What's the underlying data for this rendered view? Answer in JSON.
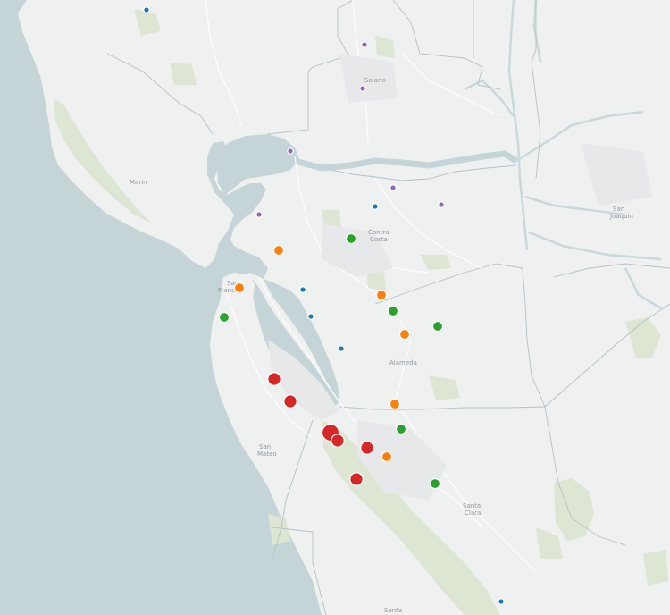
{
  "map": {
    "labels": [
      {
        "text": "Solano"
      },
      {
        "text": "Marin"
      },
      {
        "text": "Contra"
      },
      {
        "text": "Costa"
      },
      {
        "text": "San"
      },
      {
        "text": "Joaquin"
      },
      {
        "text": "San"
      },
      {
        "text": "Franc"
      },
      {
        "text": "Alameda"
      },
      {
        "text": "San"
      },
      {
        "text": "Mateo"
      },
      {
        "text": "Santa"
      },
      {
        "text": "Clara"
      },
      {
        "text": "Santa"
      }
    ],
    "colors": {
      "blue": "#1f77b4",
      "purple": "#9467bd",
      "green": "#2ca02c",
      "orange": "#ff7f0e",
      "red": "#d62728",
      "water": "#c5d5d7",
      "land": "#eff0f0",
      "park": "#dde6d3"
    },
    "points": [
      {
        "color": "blue",
        "size": "small"
      },
      {
        "color": "purple",
        "size": "small"
      },
      {
        "color": "purple",
        "size": "small"
      },
      {
        "color": "purple",
        "size": "small"
      },
      {
        "color": "purple",
        "size": "small"
      },
      {
        "color": "purple",
        "size": "small"
      },
      {
        "color": "purple",
        "size": "small"
      },
      {
        "color": "blue",
        "size": "small"
      },
      {
        "color": "green",
        "size": "medium"
      },
      {
        "color": "orange",
        "size": "medium"
      },
      {
        "color": "orange",
        "size": "medium"
      },
      {
        "color": "blue",
        "size": "small"
      },
      {
        "color": "green",
        "size": "medium"
      },
      {
        "color": "orange",
        "size": "medium"
      },
      {
        "color": "blue",
        "size": "small"
      },
      {
        "color": "green",
        "size": "medium"
      },
      {
        "color": "green",
        "size": "medium"
      },
      {
        "color": "orange",
        "size": "medium"
      },
      {
        "color": "blue",
        "size": "small"
      },
      {
        "color": "red",
        "size": "large"
      },
      {
        "color": "red",
        "size": "large"
      },
      {
        "color": "orange",
        "size": "medium"
      },
      {
        "color": "green",
        "size": "medium"
      },
      {
        "color": "red",
        "size": "xlarge"
      },
      {
        "color": "red",
        "size": "large"
      },
      {
        "color": "red",
        "size": "large"
      },
      {
        "color": "orange",
        "size": "medium"
      },
      {
        "color": "red",
        "size": "large"
      },
      {
        "color": "green",
        "size": "medium"
      },
      {
        "color": "blue",
        "size": "small"
      }
    ]
  }
}
